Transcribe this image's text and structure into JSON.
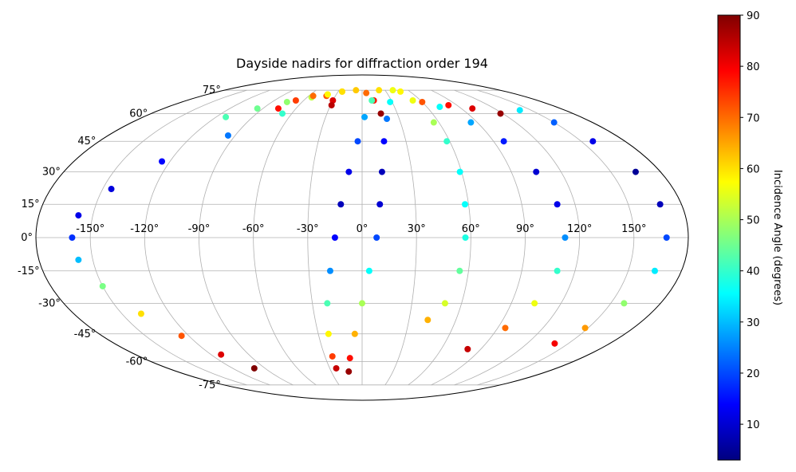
{
  "chart_data": {
    "type": "scatter",
    "projection": "mollweide",
    "title": "Dayside nadirs for diffraction order 194",
    "xlabel": "",
    "ylabel": "",
    "grid": true,
    "longitude_ticks": [
      -150,
      -120,
      -90,
      -60,
      -30,
      0,
      30,
      60,
      90,
      120,
      150
    ],
    "longitude_tick_labels": [
      "-150°",
      "-120°",
      "-90°",
      "-60°",
      "-30°",
      "0°",
      "30°",
      "60°",
      "90°",
      "120°",
      "150°"
    ],
    "latitude_ticks": [
      -75,
      -60,
      -45,
      -30,
      -15,
      0,
      15,
      30,
      45,
      60,
      75
    ],
    "latitude_tick_labels": [
      "-75°",
      "-60°",
      "-45°",
      "-30°",
      "-15°",
      "0°",
      "15°",
      "30°",
      "45°",
      "60°",
      "75°"
    ],
    "colorbar": {
      "label": "Incidence Angle (degrees)",
      "colormap": "jet",
      "range": [
        3,
        90
      ],
      "ticks": [
        10,
        20,
        30,
        40,
        50,
        60,
        70,
        80,
        90
      ],
      "tick_labels": [
        "10",
        "20",
        "30",
        "40",
        "50",
        "60",
        "70",
        "80",
        "90"
      ]
    },
    "tracks": [
      {
        "points": [
          {
            "lon": -112,
            "lat": 58,
            "inc": 42
          },
          {
            "lon": -95,
            "lat": 63,
            "inc": 45
          },
          {
            "lon": -75,
            "lat": 67,
            "inc": 48
          },
          {
            "lon": -55,
            "lat": 70,
            "inc": 52
          },
          {
            "lon": -40,
            "lat": 72,
            "inc": 58
          },
          {
            "lon": -25,
            "lat": 74,
            "inc": 60
          }
        ]
      },
      {
        "points": [
          {
            "lon": -76,
            "lat": 63,
            "inc": 78
          },
          {
            "lon": -68,
            "lat": 68,
            "inc": 74
          },
          {
            "lon": -55,
            "lat": 71,
            "inc": 70
          },
          {
            "lon": -40,
            "lat": 71,
            "inc": 72
          },
          {
            "lon": -30,
            "lat": 68,
            "inc": 82
          },
          {
            "lon": -29,
            "lat": 65,
            "inc": 85
          }
        ]
      },
      {
        "points": [
          {
            "lon": -40,
            "lat": 72,
            "inc": 58
          },
          {
            "lon": -25,
            "lat": 74,
            "inc": 60
          },
          {
            "lon": -8,
            "lat": 75,
            "inc": 62
          },
          {
            "lon": 5,
            "lat": 73,
            "inc": 70
          },
          {
            "lon": 12,
            "lat": 68,
            "inc": 78
          },
          {
            "lon": 16,
            "lat": 60,
            "inc": 88
          }
        ]
      },
      {
        "points": [
          {
            "lon": -68,
            "lat": 60,
            "inc": 40
          },
          {
            "lon": -95,
            "lat": 48,
            "inc": 24
          },
          {
            "lon": -125,
            "lat": 35,
            "inc": 14
          },
          {
            "lon": -145,
            "lat": 22,
            "inc": 11
          },
          {
            "lon": -158,
            "lat": 10,
            "inc": 12
          },
          {
            "lon": -160,
            "lat": 0,
            "inc": 18
          },
          {
            "lon": -158,
            "lat": -10,
            "inc": 30
          },
          {
            "lon": -150,
            "lat": -22,
            "inc": 46
          },
          {
            "lon": -138,
            "lat": -35,
            "inc": 60
          },
          {
            "lon": -125,
            "lat": -46,
            "inc": 72
          },
          {
            "lon": -112,
            "lat": -56,
            "inc": 82
          },
          {
            "lon": -100,
            "lat": -64,
            "inc": 90
          }
        ]
      },
      {
        "points": [
          {
            "lon": 22,
            "lat": 75,
            "inc": 60
          },
          {
            "lon": 10,
            "lat": 68,
            "inc": 42
          },
          {
            "lon": 2,
            "lat": 58,
            "inc": 28
          },
          {
            "lon": -3,
            "lat": 45,
            "inc": 20
          },
          {
            "lon": -8,
            "lat": 30,
            "inc": 12
          },
          {
            "lon": -12,
            "lat": 15,
            "inc": 8
          },
          {
            "lon": -15,
            "lat": 0,
            "inc": 14
          },
          {
            "lon": -18,
            "lat": -15,
            "inc": 26
          },
          {
            "lon": -21,
            "lat": -30,
            "inc": 42
          },
          {
            "lon": -23,
            "lat": -45,
            "inc": 58
          },
          {
            "lon": -24,
            "lat": -57,
            "inc": 74
          },
          {
            "lon": -24,
            "lat": -64,
            "inc": 84
          }
        ]
      },
      {
        "points": [
          {
            "lon": 40,
            "lat": 75,
            "inc": 56
          },
          {
            "lon": 28,
            "lat": 67,
            "inc": 36
          },
          {
            "lon": 20,
            "lat": 57,
            "inc": 24
          },
          {
            "lon": 15,
            "lat": 45,
            "inc": 14
          },
          {
            "lon": 12,
            "lat": 30,
            "inc": 8
          },
          {
            "lon": 10,
            "lat": 15,
            "inc": 10
          },
          {
            "lon": 8,
            "lat": 0,
            "inc": 20
          },
          {
            "lon": 4,
            "lat": -15,
            "inc": 36
          },
          {
            "lon": 0,
            "lat": -30,
            "inc": 50
          },
          {
            "lon": -5,
            "lat": -45,
            "inc": 64
          },
          {
            "lon": -10,
            "lat": -58,
            "inc": 78
          },
          {
            "lon": -13,
            "lat": -66,
            "inc": 88
          }
        ]
      },
      {
        "points": [
          {
            "lon": 48,
            "lat": 74,
            "inc": 58
          },
          {
            "lon": 60,
            "lat": 67,
            "inc": 72
          },
          {
            "lon": 82,
            "lat": 65,
            "inc": 78
          },
          {
            "lon": 100,
            "lat": 63,
            "inc": 82
          },
          {
            "lon": 118,
            "lat": 60,
            "inc": 88
          }
        ]
      },
      {
        "points": [
          {
            "lon": 52,
            "lat": 68,
            "inc": 56
          },
          {
            "lon": 56,
            "lat": 55,
            "inc": 50
          },
          {
            "lon": 58,
            "lat": 45,
            "inc": 40
          },
          {
            "lon": 59,
            "lat": 30,
            "inc": 36
          },
          {
            "lon": 58,
            "lat": 15,
            "inc": 36
          },
          {
            "lon": 57,
            "lat": 0,
            "inc": 38
          },
          {
            "lon": 55,
            "lat": -15,
            "inc": 44
          },
          {
            "lon": 50,
            "lat": -30,
            "inc": 54
          },
          {
            "lon": 42,
            "lat": -38,
            "inc": 64
          }
        ]
      },
      {
        "points": [
          {
            "lon": 72,
            "lat": 64,
            "inc": 36
          },
          {
            "lon": 85,
            "lat": 55,
            "inc": 28
          },
          {
            "lon": 97,
            "lat": 45,
            "inc": 16
          },
          {
            "lon": 105,
            "lat": 30,
            "inc": 10
          },
          {
            "lon": 110,
            "lat": 15,
            "inc": 12
          },
          {
            "lon": 112,
            "lat": 0,
            "inc": 26
          },
          {
            "lon": 110,
            "lat": -15,
            "inc": 40
          },
          {
            "lon": 104,
            "lat": -30,
            "inc": 56
          },
          {
            "lon": 95,
            "lat": -42,
            "inc": 70
          },
          {
            "lon": 80,
            "lat": -53,
            "inc": 84
          }
        ]
      },
      {
        "points": [
          {
            "lon": 140,
            "lat": 62,
            "inc": 34
          },
          {
            "lon": 150,
            "lat": 55,
            "inc": 22
          },
          {
            "lon": 158,
            "lat": 45,
            "inc": 12
          },
          {
            "lon": 165,
            "lat": 30,
            "inc": 5
          },
          {
            "lon": 168,
            "lat": 15,
            "inc": 8
          },
          {
            "lon": 168,
            "lat": 0,
            "inc": 20
          },
          {
            "lon": 165,
            "lat": -15,
            "inc": 34
          },
          {
            "lon": 158,
            "lat": -30,
            "inc": 48
          },
          {
            "lon": 148,
            "lat": -42,
            "inc": 66
          },
          {
            "lon": 140,
            "lat": -50,
            "inc": 80
          }
        ]
      }
    ]
  }
}
